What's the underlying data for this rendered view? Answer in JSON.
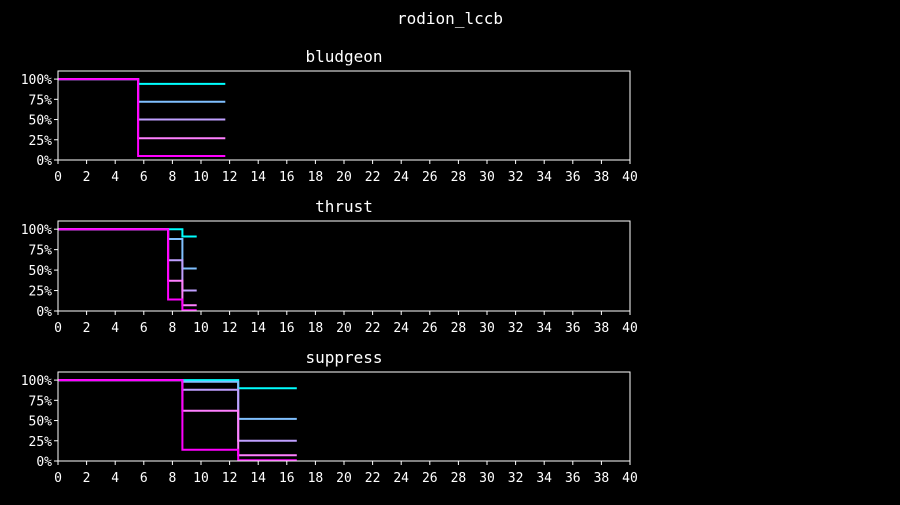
{
  "title": "rodion_lccb",
  "colors": {
    "background": "#000000",
    "foreground": "#ffffff",
    "series": [
      "#00ffff",
      "#80c0ff",
      "#c0a0ff",
      "#ff80ff",
      "#ff00ff"
    ]
  },
  "chart_data": [
    {
      "type": "line",
      "step": true,
      "title": "bludgeon",
      "xlim": [
        0,
        40
      ],
      "ylim": [
        0,
        1.1
      ],
      "x_ticks": [
        0,
        2,
        4,
        6,
        8,
        10,
        12,
        14,
        16,
        18,
        20,
        22,
        24,
        26,
        28,
        30,
        32,
        34,
        36,
        38,
        40
      ],
      "y_ticks": [
        0,
        0.25,
        0.5,
        0.75,
        1.0
      ],
      "y_tick_labels": [
        "0%",
        "25%",
        "50%",
        "75%",
        "100%"
      ],
      "grid": false,
      "series": [
        {
          "points": [
            [
              0,
              1.0
            ],
            [
              5.6,
              1.0
            ],
            [
              5.6,
              0.94
            ],
            [
              11.7,
              0.94
            ]
          ]
        },
        {
          "points": [
            [
              0,
              1.0
            ],
            [
              5.6,
              1.0
            ],
            [
              5.6,
              0.72
            ],
            [
              11.7,
              0.72
            ]
          ]
        },
        {
          "points": [
            [
              0,
              1.0
            ],
            [
              5.6,
              1.0
            ],
            [
              5.6,
              0.5
            ],
            [
              11.7,
              0.5
            ]
          ]
        },
        {
          "points": [
            [
              0,
              1.0
            ],
            [
              5.6,
              1.0
            ],
            [
              5.6,
              0.27
            ],
            [
              11.7,
              0.27
            ]
          ]
        },
        {
          "points": [
            [
              0,
              1.0
            ],
            [
              5.6,
              1.0
            ],
            [
              5.6,
              0.05
            ],
            [
              11.7,
              0.05
            ]
          ]
        }
      ]
    },
    {
      "type": "line",
      "step": true,
      "title": "thrust",
      "xlim": [
        0,
        40
      ],
      "ylim": [
        0,
        1.1
      ],
      "x_ticks": [
        0,
        2,
        4,
        6,
        8,
        10,
        12,
        14,
        16,
        18,
        20,
        22,
        24,
        26,
        28,
        30,
        32,
        34,
        36,
        38,
        40
      ],
      "y_ticks": [
        0,
        0.25,
        0.5,
        0.75,
        1.0
      ],
      "y_tick_labels": [
        "0%",
        "25%",
        "50%",
        "75%",
        "100%"
      ],
      "grid": false,
      "series": [
        {
          "points": [
            [
              0,
              1.0
            ],
            [
              8.7,
              1.0
            ],
            [
              8.7,
              0.91
            ],
            [
              9.7,
              0.91
            ]
          ]
        },
        {
          "points": [
            [
              0,
              1.0
            ],
            [
              7.7,
              1.0
            ],
            [
              7.7,
              0.88
            ],
            [
              8.7,
              0.88
            ],
            [
              8.7,
              0.52
            ],
            [
              9.7,
              0.52
            ]
          ]
        },
        {
          "points": [
            [
              0,
              1.0
            ],
            [
              7.7,
              1.0
            ],
            [
              7.7,
              0.62
            ],
            [
              8.7,
              0.62
            ],
            [
              8.7,
              0.25
            ],
            [
              9.7,
              0.25
            ]
          ]
        },
        {
          "points": [
            [
              0,
              1.0
            ],
            [
              7.7,
              1.0
            ],
            [
              7.7,
              0.37
            ],
            [
              8.7,
              0.37
            ],
            [
              8.7,
              0.07
            ],
            [
              9.7,
              0.07
            ]
          ]
        },
        {
          "points": [
            [
              0,
              1.0
            ],
            [
              7.7,
              1.0
            ],
            [
              7.7,
              0.14
            ],
            [
              8.7,
              0.14
            ],
            [
              8.7,
              0.01
            ],
            [
              9.7,
              0.01
            ]
          ]
        }
      ]
    },
    {
      "type": "line",
      "step": true,
      "title": "suppress",
      "xlim": [
        0,
        40
      ],
      "ylim": [
        0,
        1.1
      ],
      "x_ticks": [
        0,
        2,
        4,
        6,
        8,
        10,
        12,
        14,
        16,
        18,
        20,
        22,
        24,
        26,
        28,
        30,
        32,
        34,
        36,
        38,
        40
      ],
      "y_ticks": [
        0,
        0.25,
        0.5,
        0.75,
        1.0
      ],
      "y_tick_labels": [
        "0%",
        "25%",
        "50%",
        "75%",
        "100%"
      ],
      "grid": false,
      "series": [
        {
          "points": [
            [
              0,
              1.0
            ],
            [
              12.6,
              1.0
            ],
            [
              12.6,
              0.9
            ],
            [
              16.7,
              0.9
            ]
          ]
        },
        {
          "points": [
            [
              0,
              1.0
            ],
            [
              8.7,
              1.0
            ],
            [
              8.7,
              0.98
            ],
            [
              12.6,
              0.98
            ],
            [
              12.6,
              0.52
            ],
            [
              16.7,
              0.52
            ]
          ]
        },
        {
          "points": [
            [
              0,
              1.0
            ],
            [
              8.7,
              1.0
            ],
            [
              8.7,
              0.88
            ],
            [
              12.6,
              0.88
            ],
            [
              12.6,
              0.25
            ],
            [
              16.7,
              0.25
            ]
          ]
        },
        {
          "points": [
            [
              0,
              1.0
            ],
            [
              8.7,
              1.0
            ],
            [
              8.7,
              0.62
            ],
            [
              12.6,
              0.62
            ],
            [
              12.6,
              0.07
            ],
            [
              16.7,
              0.07
            ]
          ]
        },
        {
          "points": [
            [
              0,
              1.0
            ],
            [
              8.7,
              1.0
            ],
            [
              8.7,
              0.14
            ],
            [
              12.6,
              0.14
            ],
            [
              12.6,
              0.01
            ],
            [
              16.7,
              0.01
            ]
          ]
        }
      ]
    }
  ]
}
